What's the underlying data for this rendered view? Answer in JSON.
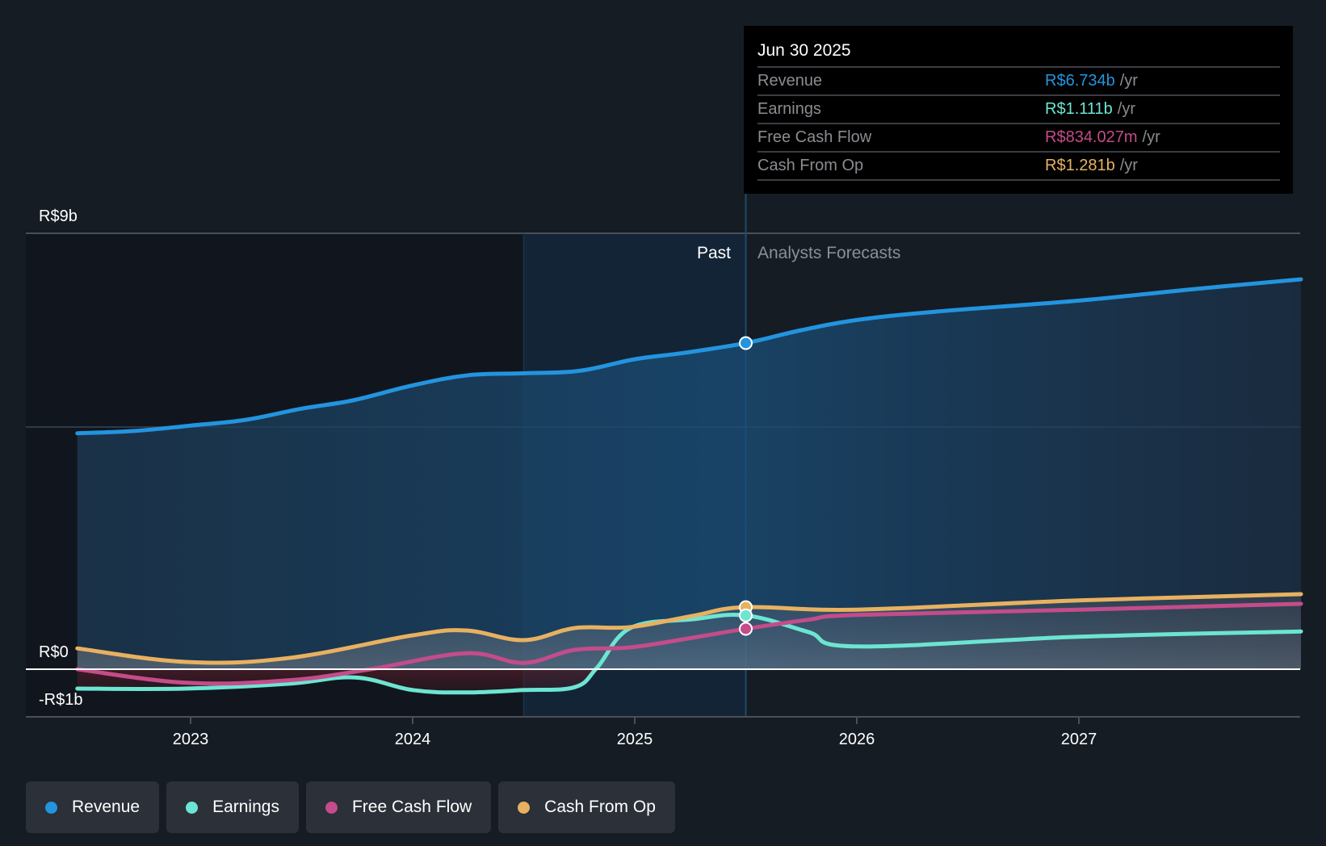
{
  "chart_data": {
    "type": "line",
    "title": "",
    "xlabel": "",
    "ylabel": "",
    "currency_prefix": "R$",
    "ylim": [
      -1,
      9
    ],
    "y_unit": "billions",
    "y_ticks": [
      {
        "value": 9,
        "label": "R$9b"
      },
      {
        "value": 0,
        "label": "R$0"
      },
      {
        "value": -1,
        "label": "-R$1b"
      }
    ],
    "y_gridlines": [
      9,
      5
    ],
    "xlim": [
      2022.3,
      2028.0
    ],
    "x_ticks": [
      {
        "value": 2023,
        "label": "2023"
      },
      {
        "value": 2024,
        "label": "2024"
      },
      {
        "value": 2025,
        "label": "2025"
      },
      {
        "value": 2026,
        "label": "2026"
      },
      {
        "value": 2027,
        "label": "2027"
      }
    ],
    "past_label": "Past",
    "forecast_label": "Analysts Forecasts",
    "past_end": 2025.5,
    "highlight_start": 2024.5,
    "grid": true,
    "legend_position": "bottom-left",
    "series": [
      {
        "name": "Revenue",
        "key": "revenue",
        "color": "#2394df",
        "points": [
          [
            2022.49,
            4.87
          ],
          [
            2022.75,
            4.92
          ],
          [
            2023.0,
            5.03
          ],
          [
            2023.25,
            5.15
          ],
          [
            2023.5,
            5.38
          ],
          [
            2023.73,
            5.55
          ],
          [
            2024.0,
            5.86
          ],
          [
            2024.25,
            6.07
          ],
          [
            2024.5,
            6.11
          ],
          [
            2024.75,
            6.16
          ],
          [
            2025.0,
            6.4
          ],
          [
            2025.22,
            6.53
          ],
          [
            2025.5,
            6.734
          ],
          [
            2025.75,
            7.0
          ],
          [
            2026.0,
            7.21
          ],
          [
            2026.35,
            7.38
          ],
          [
            2027.0,
            7.61
          ],
          [
            2027.5,
            7.84
          ],
          [
            2028.0,
            8.05
          ]
        ]
      },
      {
        "name": "Earnings",
        "key": "earnings",
        "color": "#6ce5d2",
        "points": [
          [
            2022.49,
            -0.4
          ],
          [
            2022.98,
            -0.4
          ],
          [
            2023.44,
            -0.3
          ],
          [
            2023.74,
            -0.17
          ],
          [
            2024.0,
            -0.43
          ],
          [
            2024.24,
            -0.48
          ],
          [
            2024.5,
            -0.43
          ],
          [
            2024.73,
            -0.37
          ],
          [
            2024.83,
            0.03
          ],
          [
            2024.98,
            0.85
          ],
          [
            2025.26,
            1.03
          ],
          [
            2025.5,
            1.111
          ],
          [
            2025.78,
            0.77
          ],
          [
            2026.0,
            0.47
          ],
          [
            2027.0,
            0.67
          ],
          [
            2028.0,
            0.78
          ]
        ]
      },
      {
        "name": "Free Cash Flow",
        "key": "fcf",
        "color": "#c44c8a",
        "points": [
          [
            2022.49,
            0.0
          ],
          [
            2022.98,
            -0.28
          ],
          [
            2023.44,
            -0.23
          ],
          [
            2023.81,
            0.0
          ],
          [
            2024.24,
            0.33
          ],
          [
            2024.5,
            0.13
          ],
          [
            2024.73,
            0.4
          ],
          [
            2024.98,
            0.45
          ],
          [
            2025.26,
            0.65
          ],
          [
            2025.5,
            0.834
          ],
          [
            2025.78,
            1.02
          ],
          [
            2026.0,
            1.12
          ],
          [
            2027.0,
            1.23
          ],
          [
            2028.0,
            1.35
          ]
        ]
      },
      {
        "name": "Cash From Op",
        "key": "cfo",
        "color": "#e8b160",
        "points": [
          [
            2022.49,
            0.43
          ],
          [
            2022.98,
            0.15
          ],
          [
            2023.44,
            0.23
          ],
          [
            2024.0,
            0.7
          ],
          [
            2024.24,
            0.8
          ],
          [
            2024.5,
            0.6
          ],
          [
            2024.73,
            0.85
          ],
          [
            2024.98,
            0.87
          ],
          [
            2025.26,
            1.1
          ],
          [
            2025.5,
            1.281
          ],
          [
            2026.0,
            1.23
          ],
          [
            2027.0,
            1.42
          ],
          [
            2028.0,
            1.55
          ]
        ]
      }
    ]
  },
  "tooltip": {
    "date": "Jun 30 2025",
    "rows": [
      {
        "label": "Revenue",
        "value": "R$6.734b",
        "unit": "/yr",
        "color": "#2394df"
      },
      {
        "label": "Earnings",
        "value": "R$1.111b",
        "unit": "/yr",
        "color": "#6ce5d2"
      },
      {
        "label": "Free Cash Flow",
        "value": "R$834.027m",
        "unit": "/yr",
        "color": "#c44c8a"
      },
      {
        "label": "Cash From Op",
        "value": "R$1.281b",
        "unit": "/yr",
        "color": "#e8b160"
      }
    ]
  },
  "legend": [
    {
      "label": "Revenue",
      "color": "#2394df"
    },
    {
      "label": "Earnings",
      "color": "#6ce5d2"
    },
    {
      "label": "Free Cash Flow",
      "color": "#c44c8a"
    },
    {
      "label": "Cash From Op",
      "color": "#e8b160"
    }
  ]
}
